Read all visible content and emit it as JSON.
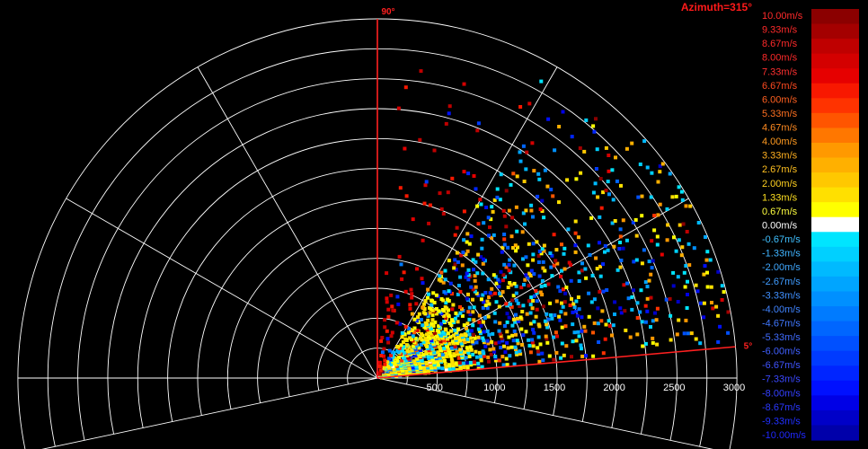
{
  "title": "Azimuth=315°",
  "chart_data": {
    "type": "heatmap",
    "title": "Azimuth=315°",
    "range_ticks": [
      "500",
      "1000",
      "1500",
      "2000",
      "2500",
      "3000"
    ],
    "range_max": 3000,
    "range_rings": [
      250,
      500,
      750,
      1000,
      1250,
      1500,
      1750,
      2000,
      2250,
      2500,
      2750,
      3000
    ],
    "radial_line_angles_deg": [
      -12,
      0,
      30,
      60,
      90,
      120,
      150,
      180,
      192
    ],
    "elevation_labels": [
      {
        "text": "90°",
        "angle": 90
      },
      {
        "text": "5°",
        "angle": 5
      }
    ],
    "elevation_range_deg": [
      5,
      90
    ],
    "colorbar": {
      "colors": [
        "#8b0000",
        "#a40000",
        "#bf0000",
        "#d40000",
        "#e60000",
        "#f81800",
        "#ff3300",
        "#ff5500",
        "#ff7700",
        "#ff9900",
        "#ffb000",
        "#ffc800",
        "#ffe000",
        "#ffff00",
        "#ffffff",
        "#00e5ff",
        "#00d0ff",
        "#00baff",
        "#00a5ff",
        "#0090ff",
        "#007bff",
        "#0066ff",
        "#0050ff",
        "#003bff",
        "#0025ff",
        "#0010ff",
        "#0000e6",
        "#0000c8",
        "#0000aa"
      ],
      "labels": [
        "10.00m/s",
        "9.33m/s",
        "8.67m/s",
        "8.00m/s",
        "7.33m/s",
        "6.67m/s",
        "6.00m/s",
        "5.33m/s",
        "4.67m/s",
        "4.00m/s",
        "3.33m/s",
        "2.67m/s",
        "2.00m/s",
        "1.33m/s",
        "0.67m/s",
        "0.00m/s",
        "-0.67m/s",
        "-1.33m/s",
        "-2.00m/s",
        "-2.67m/s",
        "-3.33m/s",
        "-4.00m/s",
        "-4.67m/s",
        "-5.33m/s",
        "-6.00m/s",
        "-6.67m/s",
        "-7.33m/s",
        "-8.00m/s",
        "-8.67m/s",
        "-9.33m/s",
        "-10.00m/s"
      ],
      "label_colors": [
        "#ff2a2a",
        "#ff2a2a",
        "#ff2a2a",
        "#ff2a2a",
        "#ff3030",
        "#ff4a20",
        "#ff6020",
        "#ff7020",
        "#ff8a20",
        "#ff9a20",
        "#ffb020",
        "#ffc020",
        "#ffd020",
        "#ffe020",
        "#ffff40",
        "#ffffff",
        "#40c0ff",
        "#40b4ff",
        "#40a8ff",
        "#409cff",
        "#4090ff",
        "#4084ff",
        "#4078ff",
        "#406cff",
        "#4060ff",
        "#4054ff",
        "#3a48ff",
        "#3440ff",
        "#2a38ff",
        "#2030ff",
        "#2028ff"
      ]
    },
    "velocity_unit": "m/s"
  }
}
